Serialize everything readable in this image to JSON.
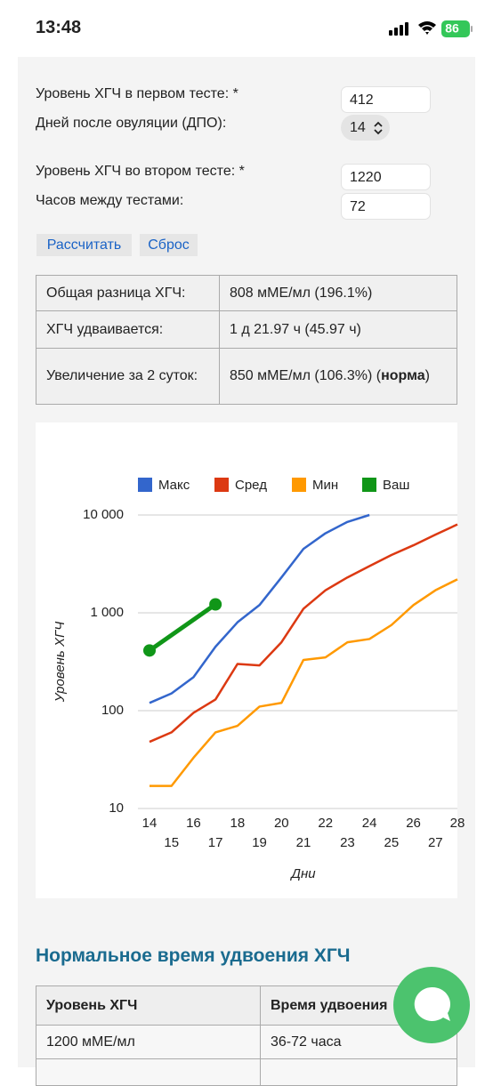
{
  "status": {
    "time": "13:48",
    "battery": "86"
  },
  "form": {
    "fields": [
      {
        "label": "Уровень ХГЧ в первом тесте: *",
        "value": "412"
      },
      {
        "label": "Дней после овуляции (ДПО):",
        "value": "14"
      },
      {
        "label": "Уровень ХГЧ во втором тесте: *",
        "value": "1220"
      },
      {
        "label": "Часов между тестами:",
        "value": "72"
      }
    ],
    "buttons": [
      "Рассчитать",
      "Сброс"
    ]
  },
  "results": {
    "rows": [
      {
        "label": "Общая разница ХГЧ:",
        "parts": [
          "808 мМЕ/мл (196.1%)"
        ]
      },
      {
        "label": "ХГЧ удваивается:",
        "parts": [
          "1 д 21.97 ч (45.97 ч)"
        ]
      },
      {
        "label": "Увеличение за 2 суток:",
        "parts": [
          "850 мМЕ/мл (106.3%) (",
          "норма",
          ")"
        ]
      }
    ]
  },
  "chart_data": {
    "type": "line",
    "y_label": "Уровень ХГЧ",
    "x_label": "Дни",
    "log_scale": true,
    "grid": true,
    "legend": "top",
    "x": [
      14,
      15,
      16,
      17,
      18,
      19,
      20,
      21,
      22,
      23,
      24,
      25,
      26,
      27,
      28
    ],
    "xlim": [
      14,
      28
    ],
    "xticks": [
      14,
      15,
      16,
      17,
      18,
      19,
      20,
      21,
      22,
      23,
      24,
      25,
      26,
      27,
      28
    ],
    "ylim": [
      10,
      10000
    ],
    "yticks": [
      10,
      100,
      {
        "value": 1000,
        "label": "1 000"
      },
      {
        "value": 10000,
        "label": "10 000"
      }
    ],
    "series": [
      {
        "name": "Макс",
        "color": "#3366cc",
        "values": [
          120,
          150,
          220,
          450,
          800,
          1200,
          2300,
          4500,
          6500,
          8500,
          10000,
          null,
          null,
          null,
          null
        ]
      },
      {
        "name": "Сред",
        "color": "#dc3912",
        "values": [
          48,
          60,
          95,
          130,
          300,
          290,
          500,
          1100,
          1700,
          2300,
          3000,
          3900,
          4900,
          6300,
          8000
        ]
      },
      {
        "name": "Мин",
        "color": "#ff9900",
        "values": [
          17,
          17,
          33,
          60,
          70,
          110,
          120,
          330,
          350,
          500,
          540,
          750,
          1200,
          1700,
          2200
        ]
      },
      {
        "name": "Ваш",
        "color": "#109618",
        "x": [
          14,
          17
        ],
        "values": [
          412,
          1220
        ],
        "markers": true
      }
    ]
  },
  "normal": {
    "title": "Нормальное время удвоения ХГЧ",
    "header": [
      "Уровень ХГЧ",
      "Время удвоения"
    ],
    "rows": [
      [
        "1200 мМЕ/мл",
        "36-72 часа"
      ]
    ]
  }
}
